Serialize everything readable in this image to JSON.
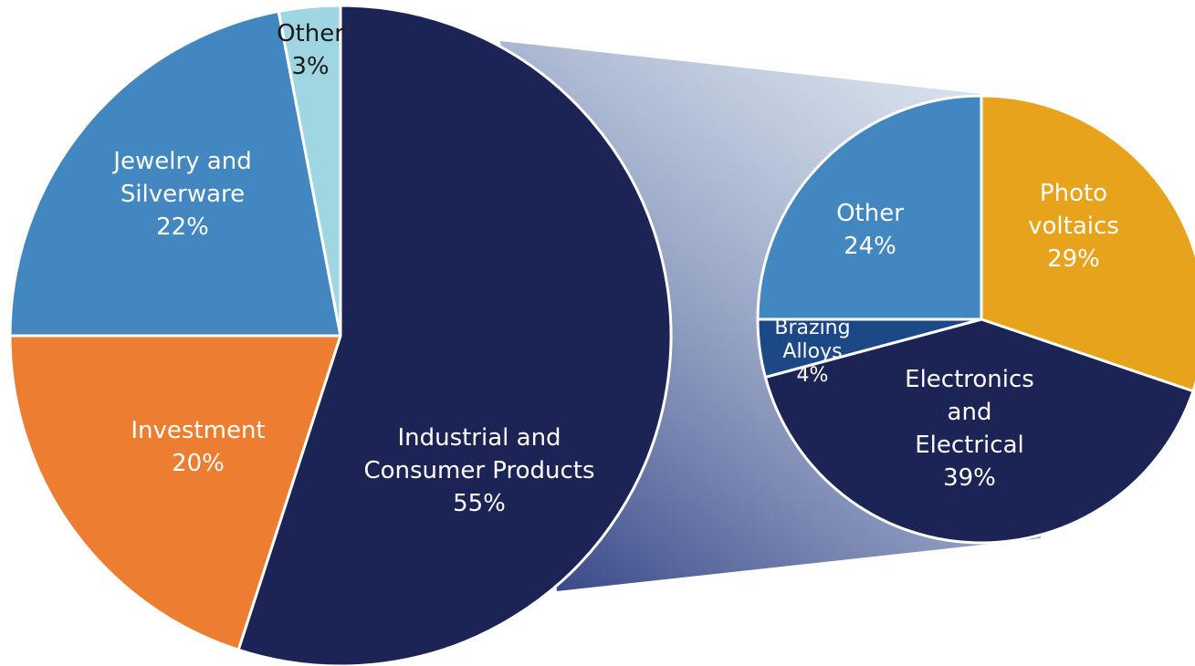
{
  "chart_data": [
    {
      "type": "pie",
      "title": "",
      "categories": [
        "Industrial and Consumer Products",
        "Investment",
        "Jewelry and Silverware",
        "Other"
      ],
      "values": [
        55,
        20,
        22,
        3
      ],
      "colors": [
        "#1c2455",
        "#ed7d31",
        "#4287bf",
        "#9fd6e2"
      ],
      "labels": [
        {
          "lines": [
            "Industrial and",
            "Consumer Products",
            "55%"
          ],
          "color": "#ffffff"
        },
        {
          "lines": [
            "Investment",
            "20%"
          ],
          "color": "#ffffff"
        },
        {
          "lines": [
            "Jewelry and",
            "Silverware",
            "22%"
          ],
          "color": "#ffffff"
        },
        {
          "lines": [
            "Other",
            "3%"
          ],
          "color": "#1a1a1a"
        }
      ]
    },
    {
      "type": "pie",
      "title": "",
      "breakdown_of": "Industrial and Consumer Products",
      "categories": [
        "Photo voltaics",
        "Electronics and Electrical",
        "Brazing Alloys",
        "Other"
      ],
      "values": [
        29,
        39,
        4,
        24
      ],
      "colors": [
        "#e6a31b",
        "#1c2455",
        "#1c4885",
        "#4287bf"
      ],
      "labels": [
        {
          "lines": [
            "Photo",
            "voltaics",
            "29%"
          ],
          "color": "#ffffff"
        },
        {
          "lines": [
            "Electronics",
            "and",
            "Electrical",
            "39%"
          ],
          "color": "#ffffff"
        },
        {
          "lines": [
            "Brazing",
            "Alloys",
            "4%"
          ],
          "color": "#ffffff"
        },
        {
          "lines": [
            "Other",
            "24%"
          ],
          "color": "#ffffff"
        }
      ]
    }
  ]
}
